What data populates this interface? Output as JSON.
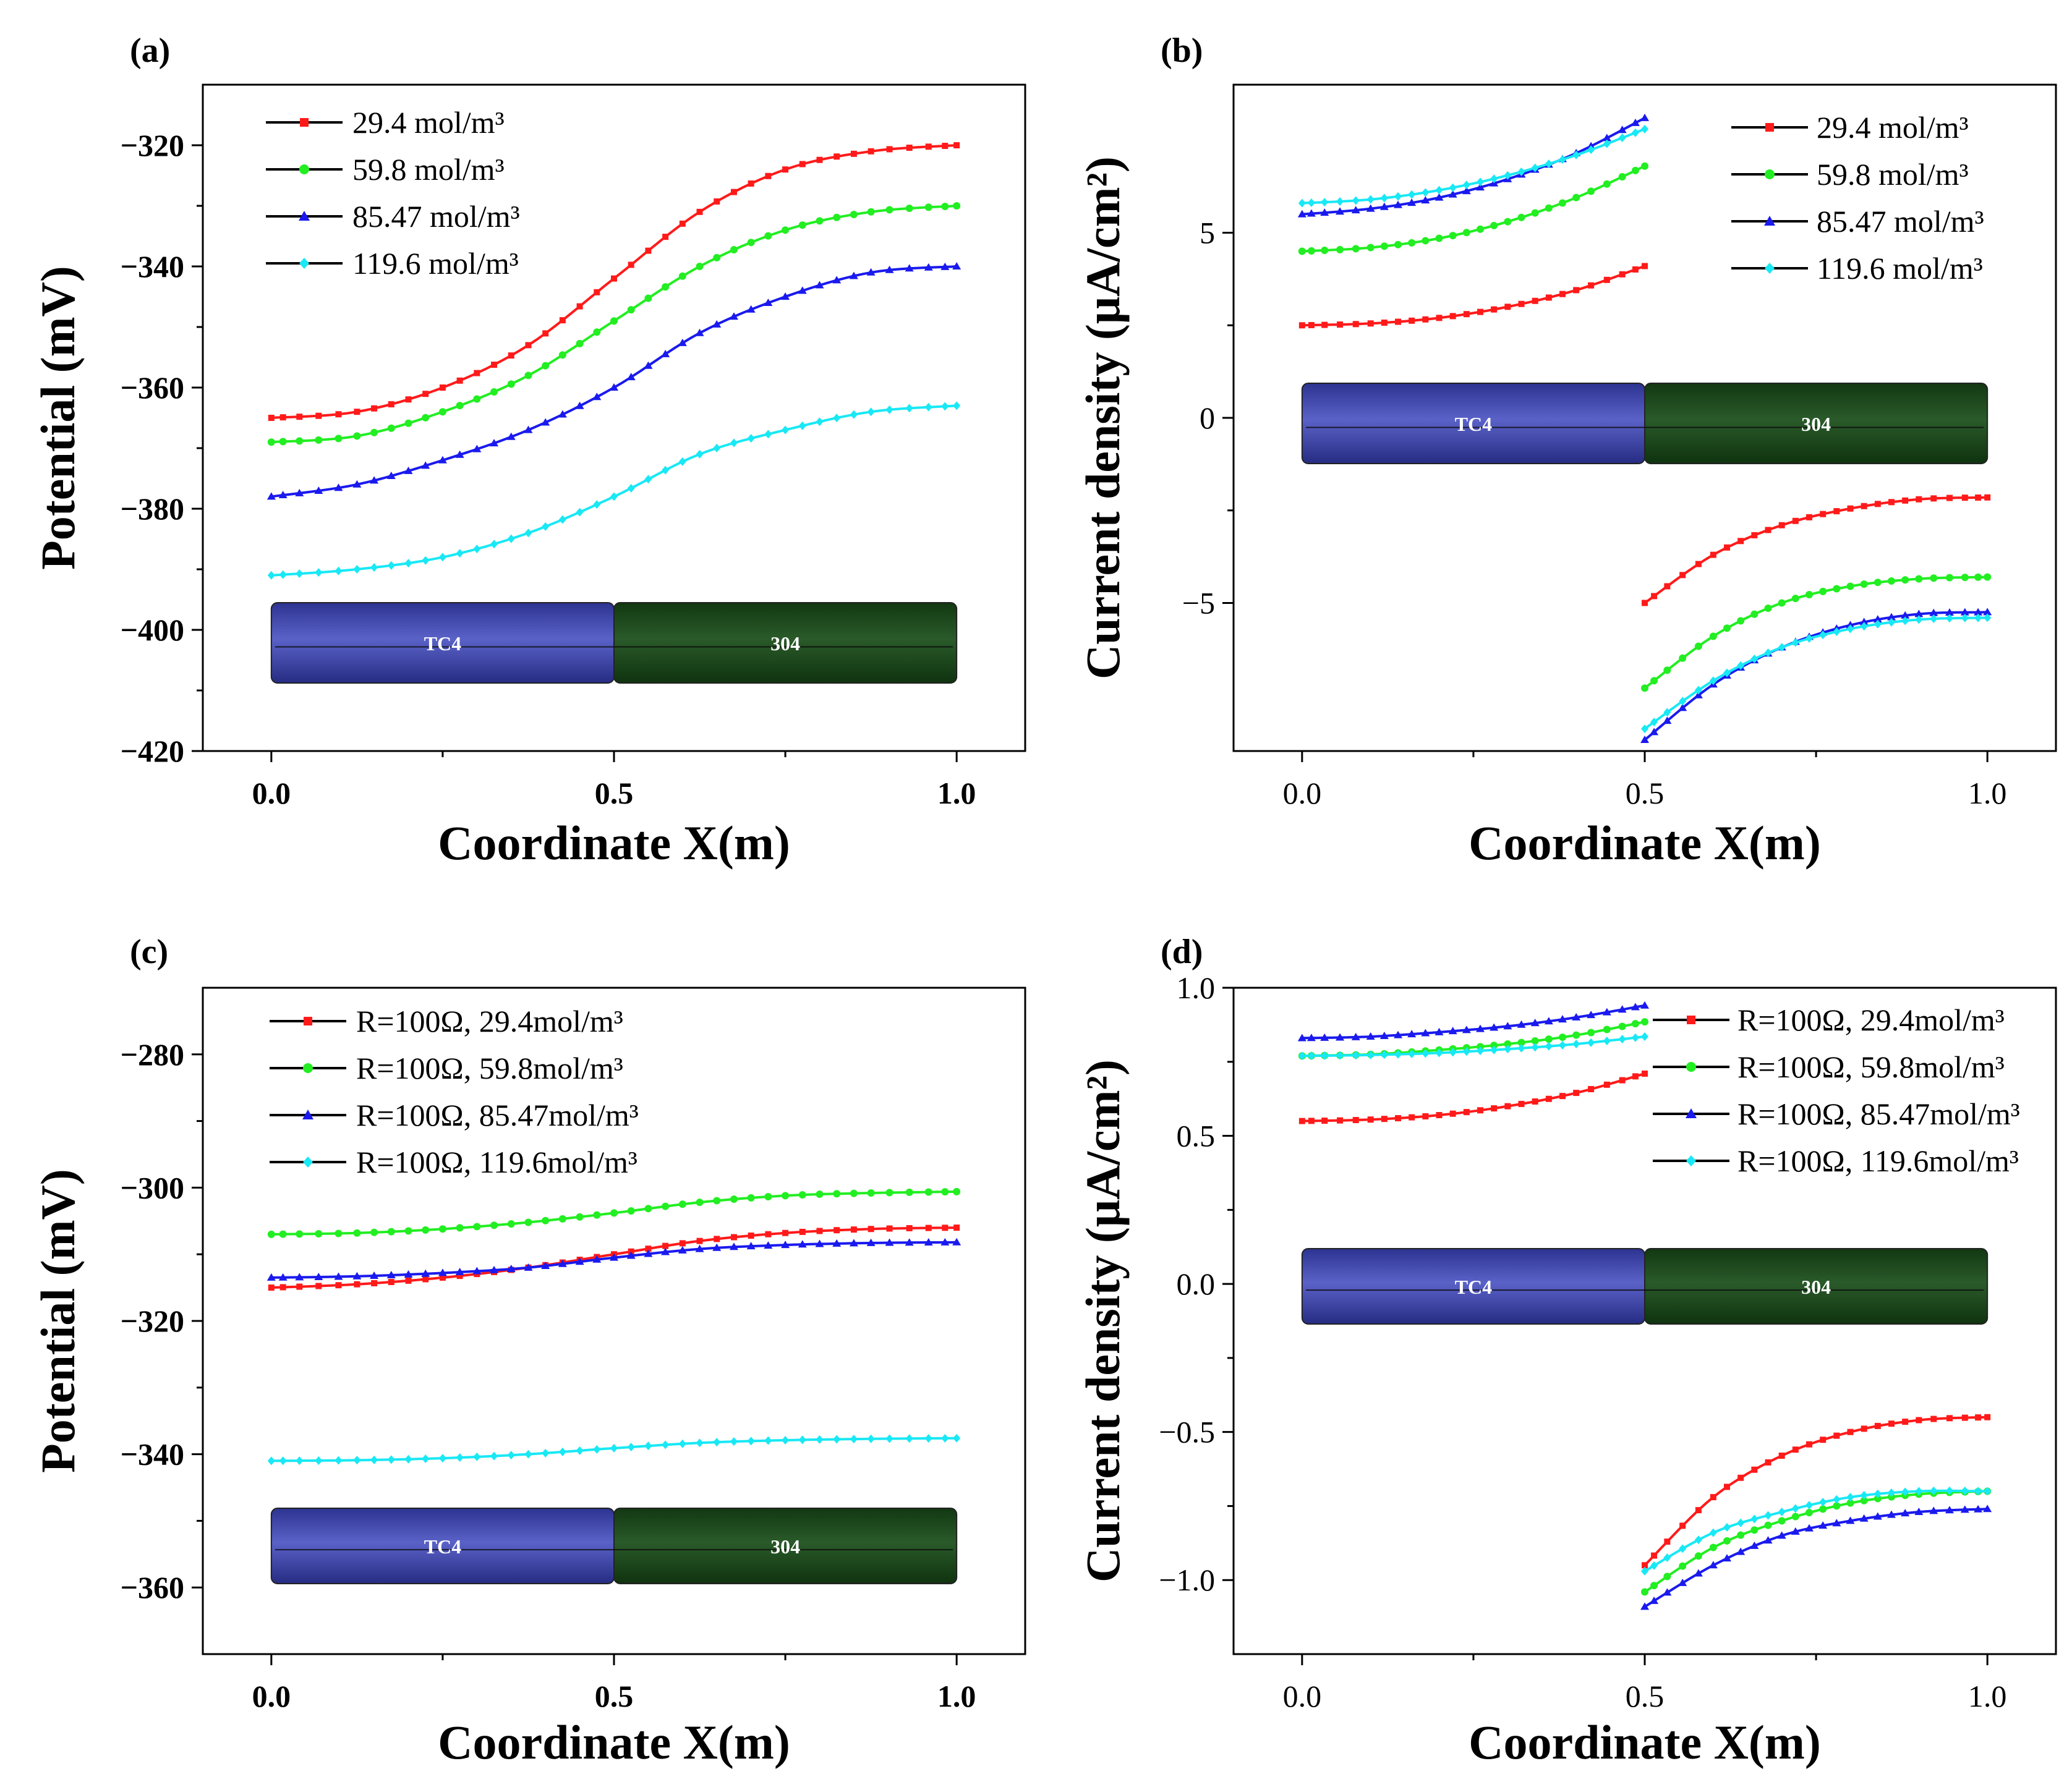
{
  "figure": {
    "inset_labels": {
      "left": "TC4",
      "right": "304"
    },
    "colors": {
      "red": "#ff1a1a",
      "green": "#22ee22",
      "blue": "#1a1aee",
      "cyan": "#19e8f5",
      "tc4": "#3f48b0",
      "ss304": "#1c4a1c"
    }
  },
  "chart_data": [
    {
      "panel": "(a)",
      "type": "line",
      "xlabel": "Coordinate X(m)",
      "ylabel": "Potential (mV)",
      "xlim": [
        -0.1,
        1.1
      ],
      "ylim": [
        -420,
        -310
      ],
      "xticks": [
        0.0,
        0.5,
        1.0
      ],
      "xtick_labels": [
        "0.0",
        "0.5",
        "1.0"
      ],
      "yticks": [
        -320,
        -340,
        -360,
        -380,
        -400,
        -420
      ],
      "ytick_labels": [
        "−320",
        "−340",
        "−360",
        "−380",
        "−400",
        "−420"
      ],
      "legend": {
        "position": "top-left",
        "entries": [
          "29.4 mol/m³",
          "59.8 mol/m³",
          "85.47 mol/m³",
          "119.6 mol/m³"
        ]
      },
      "series": [
        {
          "name": "29.4 mol/m³",
          "color": "#ff1a1a",
          "marker": "square",
          "x": [
            0.0,
            0.125,
            0.25,
            0.375,
            0.5,
            0.625,
            0.75,
            0.875,
            1.0
          ],
          "y": [
            -365,
            -364,
            -360,
            -353,
            -342,
            -331,
            -324,
            -321,
            -320
          ]
        },
        {
          "name": "59.8 mol/m³",
          "color": "#22ee22",
          "marker": "circle",
          "x": [
            0.0,
            0.125,
            0.25,
            0.375,
            0.5,
            0.625,
            0.75,
            0.875,
            1.0
          ],
          "y": [
            -369,
            -368,
            -364,
            -358,
            -349,
            -340,
            -334,
            -331,
            -330
          ]
        },
        {
          "name": "85.47 mol/m³",
          "color": "#1a1aee",
          "marker": "triangle",
          "x": [
            0.0,
            0.125,
            0.25,
            0.375,
            0.5,
            0.625,
            0.75,
            0.875,
            1.0
          ],
          "y": [
            -378,
            -376,
            -372,
            -367,
            -360,
            -351,
            -345,
            -341,
            -340
          ]
        },
        {
          "name": "119.6 mol/m³",
          "color": "#19e8f5",
          "marker": "diamond",
          "x": [
            0.0,
            0.125,
            0.25,
            0.375,
            0.5,
            0.625,
            0.75,
            0.875,
            1.0
          ],
          "y": [
            -391,
            -390,
            -388,
            -384,
            -378,
            -371,
            -367,
            -364,
            -363
          ]
        }
      ]
    },
    {
      "panel": "(b)",
      "type": "line",
      "xlabel": "Coordinate X(m)",
      "ylabel": "Current density (μA/cm²)",
      "xlim": [
        -0.1,
        1.1
      ],
      "ylim": [
        -9,
        9
      ],
      "xticks": [
        0.0,
        0.5,
        1.0
      ],
      "xtick_labels": [
        "0.0",
        "0.5",
        "1.0"
      ],
      "yticks": [
        5,
        0,
        -5
      ],
      "ytick_labels": [
        "5",
        "0",
        "−5"
      ],
      "legend": {
        "position": "top-right",
        "entries": [
          "29.4 mol/m³",
          "59.8 mol/m³",
          "85.47 mol/m³",
          "119.6 mol/m³"
        ]
      },
      "series": [
        {
          "name": "29.4 mol/m³",
          "color": "#ff1a1a",
          "marker": "square",
          "segments": [
            {
              "x": [
                0.0,
                0.1,
                0.2,
                0.3,
                0.4,
                0.5
              ],
              "y": [
                2.5,
                2.55,
                2.7,
                3.0,
                3.45,
                4.1
              ]
            },
            {
              "x": [
                0.5,
                0.6,
                0.7,
                0.8,
                0.9,
                1.0
              ],
              "y": [
                -5.0,
                -3.7,
                -2.9,
                -2.45,
                -2.2,
                -2.15
              ]
            }
          ]
        },
        {
          "name": "59.8 mol/m³",
          "color": "#22ee22",
          "marker": "circle",
          "segments": [
            {
              "x": [
                0.0,
                0.1,
                0.2,
                0.3,
                0.4,
                0.5
              ],
              "y": [
                4.5,
                4.6,
                4.85,
                5.3,
                5.95,
                6.8
              ]
            },
            {
              "x": [
                0.5,
                0.6,
                0.7,
                0.8,
                0.9,
                1.0
              ],
              "y": [
                -7.3,
                -5.9,
                -5.0,
                -4.55,
                -4.35,
                -4.3
              ]
            }
          ]
        },
        {
          "name": "85.47 mol/m³",
          "color": "#1a1aee",
          "marker": "triangle",
          "segments": [
            {
              "x": [
                0.0,
                0.1,
                0.2,
                0.3,
                0.4,
                0.5
              ],
              "y": [
                5.5,
                5.65,
                5.95,
                6.45,
                7.15,
                8.1
              ]
            },
            {
              "x": [
                0.5,
                0.6,
                0.7,
                0.8,
                0.9,
                1.0
              ],
              "y": [
                -8.7,
                -7.2,
                -6.2,
                -5.6,
                -5.3,
                -5.25
              ]
            }
          ]
        },
        {
          "name": "119.6 mol/m³",
          "color": "#19e8f5",
          "marker": "diamond",
          "segments": [
            {
              "x": [
                0.0,
                0.1,
                0.2,
                0.3,
                0.4,
                0.5
              ],
              "y": [
                5.8,
                5.9,
                6.15,
                6.55,
                7.1,
                7.8
              ]
            },
            {
              "x": [
                0.5,
                0.6,
                0.7,
                0.8,
                0.9,
                1.0
              ],
              "y": [
                -8.4,
                -7.1,
                -6.2,
                -5.7,
                -5.45,
                -5.4
              ]
            }
          ]
        }
      ]
    },
    {
      "panel": "(c)",
      "type": "line",
      "xlabel": "Coordinate X(m)",
      "ylabel": "Potential (mV)",
      "xlim": [
        -0.1,
        1.1
      ],
      "ylim": [
        -370,
        -270
      ],
      "xticks": [
        0.0,
        0.5,
        1.0
      ],
      "xtick_labels": [
        "0.0",
        "0.5",
        "1.0"
      ],
      "yticks": [
        -280,
        -300,
        -320,
        -340,
        -360
      ],
      "ytick_labels": [
        "−280",
        "−300",
        "−320",
        "−340",
        "−360"
      ],
      "legend": {
        "position": "top-left",
        "entries": [
          "R=100Ω, 29.4mol/m³",
          "R=100Ω, 59.8mol/m³",
          "R=100Ω, 85.47mol/m³",
          "R=100Ω, 119.6mol/m³"
        ]
      },
      "series": [
        {
          "name": "R=100Ω, 29.4mol/m³",
          "color": "#ff1a1a",
          "marker": "square",
          "x": [
            0.0,
            0.125,
            0.25,
            0.375,
            0.5,
            0.625,
            0.75,
            0.875,
            1.0
          ],
          "y": [
            -315,
            -314.5,
            -313.5,
            -312,
            -310,
            -308,
            -306.8,
            -306.2,
            -306
          ]
        },
        {
          "name": "R=100Ω, 59.8mol/m³",
          "color": "#22ee22",
          "marker": "circle",
          "x": [
            0.0,
            0.125,
            0.25,
            0.375,
            0.5,
            0.625,
            0.75,
            0.875,
            1.0
          ],
          "y": [
            -307,
            -306.8,
            -306.2,
            -305.2,
            -303.8,
            -302.2,
            -301.2,
            -300.8,
            -300.6
          ]
        },
        {
          "name": "R=100Ω, 85.47mol/m³",
          "color": "#1a1aee",
          "marker": "triangle",
          "x": [
            0.0,
            0.125,
            0.25,
            0.375,
            0.5,
            0.625,
            0.75,
            0.875,
            1.0
          ],
          "y": [
            -313.5,
            -313.3,
            -312.8,
            -312,
            -310.5,
            -309.2,
            -308.6,
            -308.3,
            -308.2
          ]
        },
        {
          "name": "R=100Ω, 119.6mol/m³",
          "color": "#19e8f5",
          "marker": "diamond",
          "x": [
            0.0,
            0.125,
            0.25,
            0.375,
            0.5,
            0.625,
            0.75,
            0.875,
            1.0
          ],
          "y": [
            -341,
            -340.9,
            -340.6,
            -340,
            -339.1,
            -338.3,
            -337.9,
            -337.7,
            -337.6
          ]
        }
      ]
    },
    {
      "panel": "(d)",
      "type": "line",
      "xlabel": "Coordinate X(m)",
      "ylabel": "Current density (μA/cm²)",
      "xlim": [
        -0.1,
        1.1
      ],
      "ylim": [
        -1.25,
        1.0
      ],
      "xticks": [
        0.0,
        0.5,
        1.0
      ],
      "xtick_labels": [
        "0.0",
        "0.5",
        "1.0"
      ],
      "yticks": [
        1.0,
        0.5,
        0.0,
        -0.5,
        -1.0
      ],
      "ytick_labels": [
        "1.0",
        "0.5",
        "0.0",
        "−0.5",
        "−1.0"
      ],
      "legend": {
        "position": "top-right",
        "entries": [
          "R=100Ω, 29.4mol/m³",
          "R=100Ω, 59.8mol/m³",
          "R=100Ω, 85.47mol/m³",
          "R=100Ω, 119.6mol/m³"
        ]
      },
      "series": [
        {
          "name": "R=100Ω, 29.4mol/m³",
          "color": "#ff1a1a",
          "marker": "square",
          "segments": [
            {
              "x": [
                0.0,
                0.1,
                0.2,
                0.3,
                0.4,
                0.5
              ],
              "y": [
                0.55,
                0.555,
                0.57,
                0.6,
                0.645,
                0.71
              ]
            },
            {
              "x": [
                0.5,
                0.6,
                0.7,
                0.8,
                0.9,
                1.0
              ],
              "y": [
                -0.95,
                -0.72,
                -0.58,
                -0.5,
                -0.46,
                -0.45
              ]
            }
          ]
        },
        {
          "name": "R=100Ω, 59.8mol/m³",
          "color": "#22ee22",
          "marker": "circle",
          "segments": [
            {
              "x": [
                0.0,
                0.1,
                0.2,
                0.3,
                0.4,
                0.5
              ],
              "y": [
                0.77,
                0.775,
                0.79,
                0.81,
                0.84,
                0.885
              ]
            },
            {
              "x": [
                0.5,
                0.6,
                0.7,
                0.8,
                0.9,
                1.0
              ],
              "y": [
                -1.04,
                -0.89,
                -0.8,
                -0.74,
                -0.71,
                -0.7
              ]
            }
          ]
        },
        {
          "name": "R=100Ω, 85.47mol/m³",
          "color": "#1a1aee",
          "marker": "triangle",
          "segments": [
            {
              "x": [
                0.0,
                0.1,
                0.2,
                0.3,
                0.4,
                0.5
              ],
              "y": [
                0.83,
                0.835,
                0.85,
                0.87,
                0.9,
                0.94
              ]
            },
            {
              "x": [
                0.5,
                0.6,
                0.7,
                0.8,
                0.9,
                1.0
              ],
              "y": [
                -1.09,
                -0.95,
                -0.85,
                -0.8,
                -0.77,
                -0.76
              ]
            }
          ]
        },
        {
          "name": "R=100Ω, 119.6mol/m³",
          "color": "#19e8f5",
          "marker": "diamond",
          "segments": [
            {
              "x": [
                0.0,
                0.1,
                0.2,
                0.3,
                0.4,
                0.5
              ],
              "y": [
                0.77,
                0.773,
                0.78,
                0.793,
                0.81,
                0.835
              ]
            },
            {
              "x": [
                0.5,
                0.6,
                0.7,
                0.8,
                0.9,
                1.0
              ],
              "y": [
                -0.97,
                -0.84,
                -0.77,
                -0.72,
                -0.7,
                -0.7
              ]
            }
          ]
        }
      ]
    }
  ]
}
